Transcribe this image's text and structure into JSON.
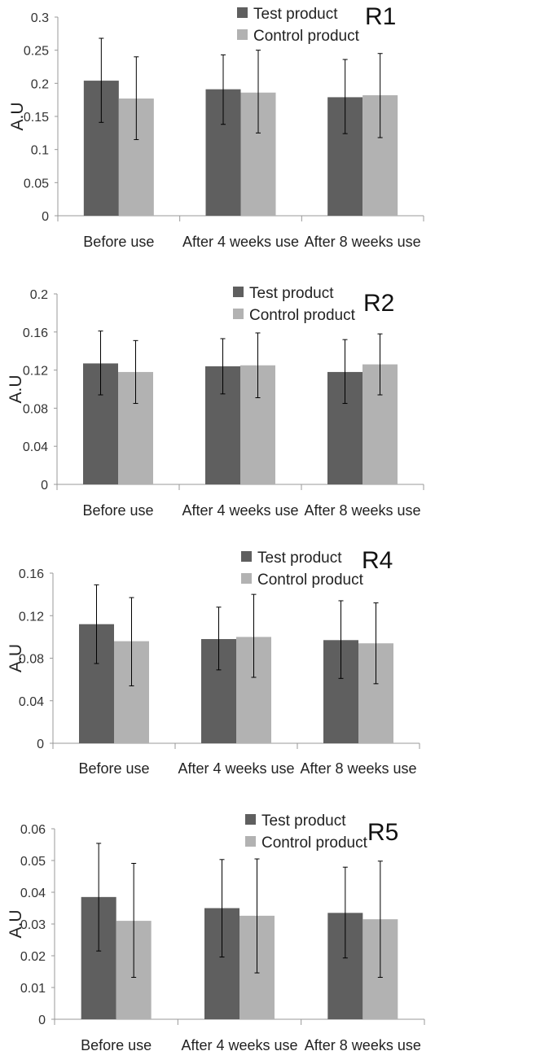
{
  "colors": {
    "test": "#5f5f5f",
    "control": "#b2b2b2",
    "axis": "#999999",
    "error": "#000000"
  },
  "chart_data": [
    {
      "type": "bar",
      "title": "R1",
      "ylabel": "A.U",
      "ylim": [
        0,
        0.3
      ],
      "yticks": [
        "0",
        "0.05",
        "0.1",
        "0.15",
        "0.2",
        "0.25",
        "0.3"
      ],
      "ytick_values": [
        0,
        0.05,
        0.1,
        0.15,
        0.2,
        0.25,
        0.3
      ],
      "categories": [
        "Before use",
        "After 4 weeks use",
        "After 8 weeks use"
      ],
      "legend_position": "top-right",
      "grid": false,
      "series": [
        {
          "name": "Test product",
          "values": [
            0.204,
            0.191,
            0.179
          ],
          "err_high": [
            0.268,
            0.243,
            0.236
          ],
          "err_low": [
            0.141,
            0.138,
            0.124
          ]
        },
        {
          "name": "Control product",
          "values": [
            0.177,
            0.186,
            0.182
          ],
          "err_high": [
            0.24,
            0.25,
            0.245
          ],
          "err_low": [
            0.115,
            0.125,
            0.118
          ]
        }
      ]
    },
    {
      "type": "bar",
      "title": "R2",
      "ylabel": "A.U",
      "ylim": [
        0,
        0.2
      ],
      "yticks": [
        "0",
        "0.04",
        "0.08",
        "0.12",
        "0.16",
        "0.2"
      ],
      "ytick_values": [
        0,
        0.04,
        0.08,
        0.12,
        0.16,
        0.2
      ],
      "categories": [
        "Before use",
        "After 4 weeks use",
        "After 8 weeks use"
      ],
      "legend_position": "top-right",
      "grid": false,
      "series": [
        {
          "name": "Test product",
          "values": [
            0.127,
            0.124,
            0.118
          ],
          "err_high": [
            0.161,
            0.153,
            0.152
          ],
          "err_low": [
            0.094,
            0.095,
            0.085
          ]
        },
        {
          "name": "Control product",
          "values": [
            0.118,
            0.125,
            0.126
          ],
          "err_high": [
            0.151,
            0.159,
            0.158
          ],
          "err_low": [
            0.085,
            0.091,
            0.094
          ]
        }
      ]
    },
    {
      "type": "bar",
      "title": "R4",
      "ylabel": "A.U",
      "ylim": [
        0,
        0.16
      ],
      "yticks": [
        "0",
        "0.04",
        "0.08",
        "0.12",
        "0.16"
      ],
      "ytick_values": [
        0,
        0.04,
        0.08,
        0.12,
        0.16
      ],
      "categories": [
        "Before use",
        "After 4 weeks use",
        "After 8 weeks use"
      ],
      "legend_position": "top-right",
      "grid": false,
      "series": [
        {
          "name": "Test product",
          "values": [
            0.112,
            0.098,
            0.097
          ],
          "err_high": [
            0.149,
            0.128,
            0.134
          ],
          "err_low": [
            0.075,
            0.069,
            0.061
          ]
        },
        {
          "name": "Control product",
          "values": [
            0.096,
            0.1,
            0.094
          ],
          "err_high": [
            0.137,
            0.14,
            0.132
          ],
          "err_low": [
            0.054,
            0.062,
            0.056
          ]
        }
      ]
    },
    {
      "type": "bar",
      "title": "R5",
      "ylabel": "A.U",
      "ylim": [
        0,
        0.06
      ],
      "yticks": [
        "0",
        "0.01",
        "0.02",
        "0.03",
        "0.04",
        "0.05",
        "0.06"
      ],
      "ytick_values": [
        0,
        0.01,
        0.02,
        0.03,
        0.04,
        0.05,
        0.06
      ],
      "categories": [
        "Before use",
        "After 4 weeks use",
        "After 8 weeks use"
      ],
      "legend_position": "top-right",
      "grid": false,
      "series": [
        {
          "name": "Test product",
          "values": [
            0.0385,
            0.035,
            0.0335
          ],
          "err_high": [
            0.0554,
            0.0503,
            0.0479
          ],
          "err_low": [
            0.0215,
            0.0196,
            0.0193
          ]
        },
        {
          "name": "Control product",
          "values": [
            0.031,
            0.0326,
            0.0315
          ],
          "err_high": [
            0.0491,
            0.0505,
            0.0498
          ],
          "err_low": [
            0.0132,
            0.0146,
            0.0132
          ]
        }
      ]
    }
  ]
}
